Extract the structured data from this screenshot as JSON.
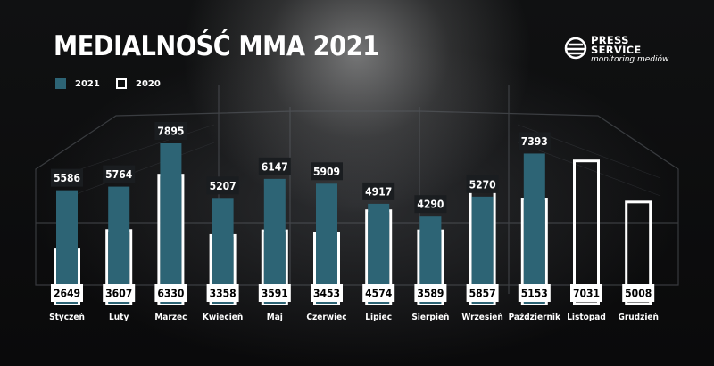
{
  "title": "MEDIALNOŚĆ MMA 2021",
  "legend": [
    {
      "label": "2021",
      "color": "#2d6475"
    },
    {
      "label": "2020",
      "color": "#ffffff"
    }
  ],
  "logo": {
    "line1": "PRESS",
    "line2": "SERVICE",
    "sub": "monitoring mediów"
  },
  "colors": {
    "bar2021": "#2d6475",
    "bar2020_border": "#ffffff",
    "label_bg": "#ffffff"
  },
  "chart_data": {
    "type": "bar",
    "title": "MEDIALNOŚĆ MMA 2021",
    "categories": [
      "Styczeń",
      "Luty",
      "Marzec",
      "Kwiecień",
      "Maj",
      "Czerwiec",
      "Lipiec",
      "Sierpień",
      "Wrzesień",
      "Październik",
      "Listopad",
      "Grudzień"
    ],
    "series": [
      {
        "name": "2021",
        "values": [
          5586,
          5764,
          7895,
          5207,
          6147,
          5909,
          4917,
          4290,
          5270,
          7393,
          null,
          null
        ]
      },
      {
        "name": "2020",
        "values": [
          2649,
          3607,
          6330,
          3358,
          3591,
          3453,
          4574,
          3589,
          5857,
          5153,
          7031,
          5008
        ]
      }
    ],
    "ylim": [
      0,
      8800
    ],
    "grid": false,
    "legend_position": "top-left"
  }
}
